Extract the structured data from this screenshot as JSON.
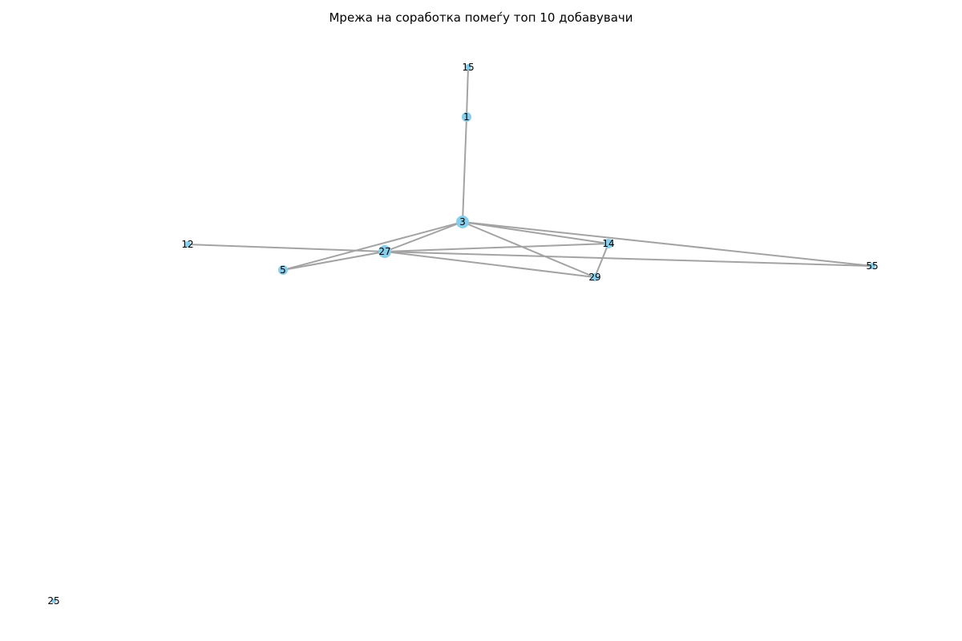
{
  "title": "Мрежа на соработка помеѓу топ 10 добавувачи",
  "colors": {
    "node": "#87ceeb",
    "edge": "#a3a3a3",
    "label": "#000000"
  },
  "graph": {
    "nodes": [
      {
        "id": "15",
        "label": "15"
      },
      {
        "id": "1",
        "label": "1"
      },
      {
        "id": "3",
        "label": "3"
      },
      {
        "id": "12",
        "label": "12"
      },
      {
        "id": "27",
        "label": "27"
      },
      {
        "id": "14",
        "label": "14"
      },
      {
        "id": "5",
        "label": "5"
      },
      {
        "id": "29",
        "label": "29"
      },
      {
        "id": "55",
        "label": "55"
      },
      {
        "id": "25",
        "label": "25"
      }
    ],
    "edges": [
      [
        "15",
        "1"
      ],
      [
        "1",
        "3"
      ],
      [
        "3",
        "27"
      ],
      [
        "3",
        "5"
      ],
      [
        "3",
        "14"
      ],
      [
        "3",
        "29"
      ],
      [
        "3",
        "55"
      ],
      [
        "12",
        "27"
      ],
      [
        "27",
        "5"
      ],
      [
        "27",
        "14"
      ],
      [
        "27",
        "29"
      ],
      [
        "27",
        "55"
      ],
      [
        "14",
        "29"
      ]
    ]
  }
}
